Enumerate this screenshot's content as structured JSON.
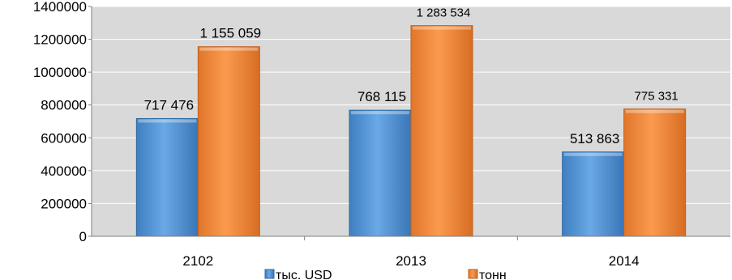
{
  "chart_data": {
    "type": "bar",
    "categories": [
      "2102",
      "2013",
      "2014"
    ],
    "series": [
      {
        "name": "тыс. USD",
        "values": [
          717476,
          768115,
          513863
        ],
        "labels": [
          "717 476",
          "768 115",
          "513 863"
        ],
        "color": "#5b9bd5"
      },
      {
        "name": "тонн",
        "values": [
          1155059,
          1283534,
          775331
        ],
        "labels": [
          "1 155 059",
          "1 283 534",
          "775 331"
        ],
        "color": "#f79646"
      }
    ],
    "ylim": [
      0,
      1400000
    ],
    "yticks": [
      "0",
      "200000",
      "400000",
      "600000",
      "800000",
      "1000000",
      "1200000",
      "1400000"
    ],
    "grid": true,
    "plot_background": "#d9d9d9",
    "legend_position": "bottom",
    "title": "",
    "xlabel": "",
    "ylabel": ""
  }
}
